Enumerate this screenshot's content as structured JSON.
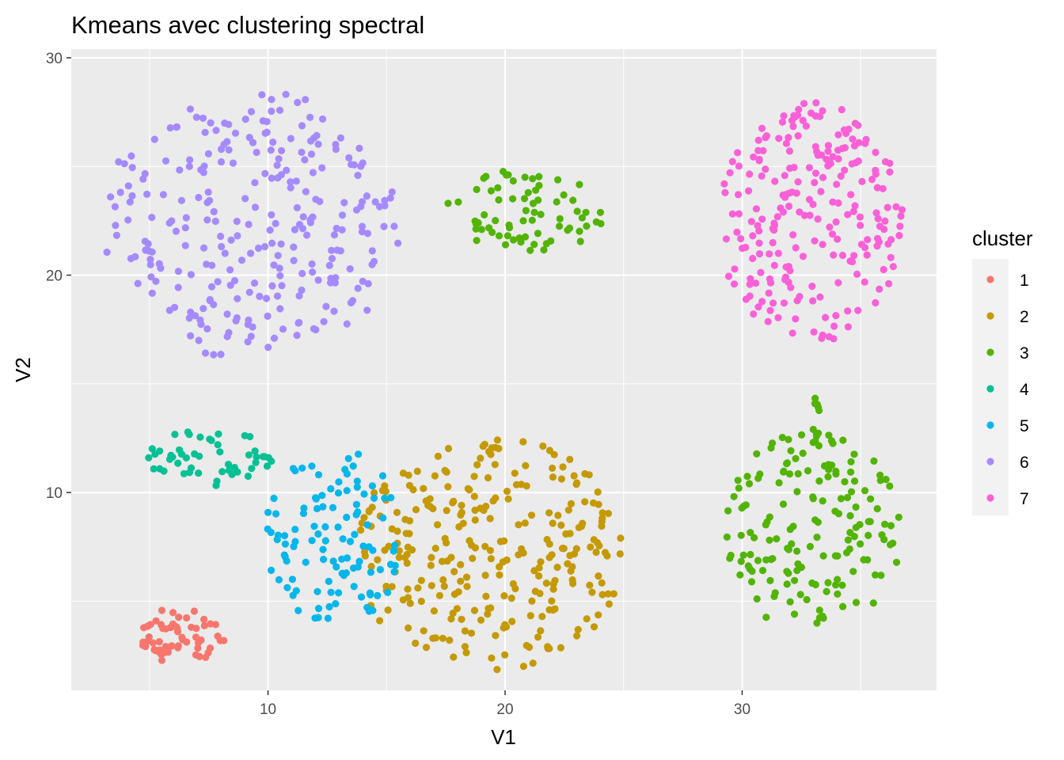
{
  "chart_data": {
    "type": "scatter",
    "title": "Kmeans avec clustering spectral",
    "xlabel": "V1",
    "ylabel": "V2",
    "xlim": [
      1.7,
      38.2
    ],
    "ylim": [
      0.9,
      30.4
    ],
    "x_ticks": [
      10,
      20,
      30
    ],
    "y_ticks": [
      10,
      20,
      30
    ],
    "x_tick_labels": [
      "10",
      "20",
      "30"
    ],
    "y_tick_labels": [
      "10",
      "20",
      "30"
    ],
    "grid": true,
    "legend": {
      "title": "cluster",
      "position": "right"
    },
    "series": [
      {
        "name": "1",
        "color": "#F8766D",
        "shape": "ellipse",
        "center": [
          6.5,
          3.4
        ],
        "radius": [
          1.9,
          1.4
        ],
        "n": 60
      },
      {
        "name": "2",
        "color": "#C49A00",
        "shape": "ellipse",
        "center": [
          19.3,
          7.2
        ],
        "radius": [
          5.8,
          5.4
        ],
        "n": 280
      },
      {
        "name": "3",
        "color": "#53B400",
        "shape": "groups",
        "n": 240,
        "groups": [
          {
            "center": [
              21.0,
              23.0
            ],
            "radius": [
              3.5,
              1.9
            ],
            "n": 70
          },
          {
            "center": [
              33.0,
              8.2
            ],
            "radius": [
              3.7,
              4.7
            ],
            "n": 160
          },
          {
            "center": [
              33.1,
              13.6
            ],
            "radius": [
              0.15,
              1.5
            ],
            "n": 10
          }
        ]
      },
      {
        "name": "4",
        "color": "#00C094",
        "shape": "ellipse",
        "center": [
          7.5,
          11.7
        ],
        "radius": [
          2.7,
          1.4
        ],
        "n": 50
      },
      {
        "name": "5",
        "color": "#00B6EB",
        "shape": "ellipse",
        "center": [
          12.8,
          8.0
        ],
        "radius": [
          2.9,
          4.2
        ],
        "n": 110
      },
      {
        "name": "6",
        "color": "#A58AFF",
        "shape": "ellipse",
        "center": [
          9.3,
          22.3
        ],
        "radius": [
          6.4,
          6.2
        ],
        "n": 270
      },
      {
        "name": "7",
        "color": "#FB61D7",
        "shape": "ellipse",
        "center": [
          32.9,
          22.5
        ],
        "radius": [
          3.9,
          5.6
        ],
        "n": 230
      }
    ]
  }
}
